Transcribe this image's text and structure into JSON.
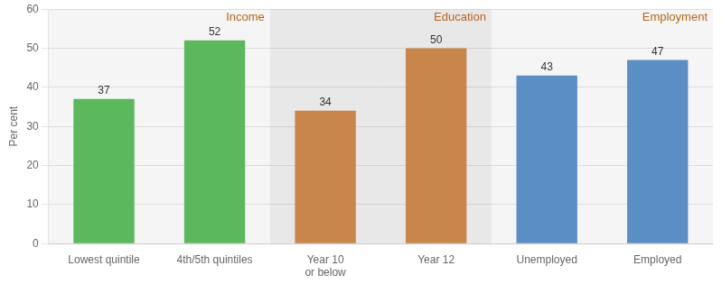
{
  "chart_data": {
    "type": "bar",
    "categories": [
      "Lowest quintile",
      "4th/5th quintiles",
      "Year 10\nor below",
      "Year 12",
      "Unemployed",
      "Employed"
    ],
    "values": [
      37,
      52,
      34,
      50,
      43,
      47
    ],
    "colors": [
      "#5cb85c",
      "#5cb85c",
      "#c8864a",
      "#c8864a",
      "#5b8ec4",
      "#5b8ec4"
    ],
    "ylabel": "Per cent",
    "ylim": [
      0,
      60
    ],
    "yticks": [
      0,
      10,
      20,
      30,
      40,
      50,
      60
    ],
    "grid": true,
    "data_labels": true,
    "annotations": [
      "Income",
      "Education",
      "Employment"
    ]
  }
}
